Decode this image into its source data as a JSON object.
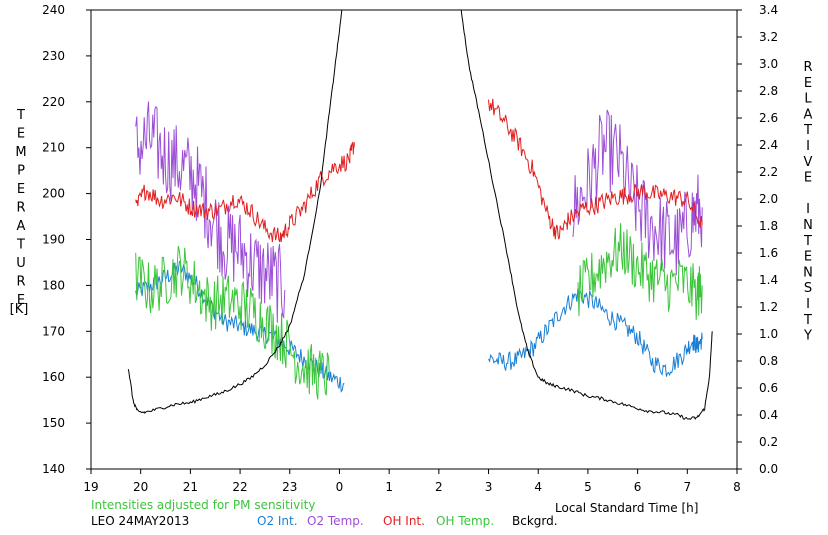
{
  "chart_data": {
    "type": "line",
    "title": "",
    "xlabel": "Local Standard Time [h]",
    "ylabel_left": "TEMPERATURE [K]",
    "ylabel_left_letters": [
      "T",
      "E",
      "M",
      "P",
      "E",
      "R",
      "A",
      "T",
      "U",
      "R",
      "E"
    ],
    "ylabel_left_unit": "[K]",
    "ylabel_right_letters": [
      "R",
      "E",
      "L",
      "A",
      "T",
      "I",
      "V",
      "E",
      "",
      "I",
      "N",
      "T",
      "E",
      "N",
      "S",
      "I",
      "T",
      "Y"
    ],
    "ylim_left": [
      140,
      240
    ],
    "ylim_right": [
      0.0,
      3.4
    ],
    "xlim": [
      19,
      32
    ],
    "x_ticks": [
      19,
      20,
      21,
      22,
      23,
      24,
      25,
      26,
      27,
      28,
      29,
      30,
      31,
      32
    ],
    "x_tick_labels": [
      "19",
      "20",
      "21",
      "22",
      "23",
      "0",
      "1",
      "2",
      "3",
      "4",
      "5",
      "6",
      "7",
      "8"
    ],
    "y_left_ticks": [
      "140",
      "150",
      "160",
      "170",
      "180",
      "190",
      "200",
      "210",
      "220",
      "230",
      "240"
    ],
    "y_right_ticks": [
      "0.0",
      "0.2",
      "0.4",
      "0.6",
      "0.8",
      "1.0",
      "1.2",
      "1.4",
      "1.6",
      "1.8",
      "2.0",
      "2.2",
      "2.4",
      "2.6",
      "2.8",
      "3.0",
      "3.2",
      "3.4"
    ],
    "note": "Intensities adjusted for PM sensitivity",
    "site_date": "LEO 24MAY2013",
    "grid": false,
    "legend_position": "bottom",
    "series": [
      {
        "name": "O2 Int.",
        "axis": "right",
        "color": "#1a7fd4",
        "segments": [
          {
            "x": [
              19.9,
              20.2,
              20.5,
              20.8,
              21.1,
              21.4,
              21.7,
              22.0,
              22.3,
              22.6,
              22.9,
              23.2,
              23.5,
              23.8,
              24.1
            ],
            "y": [
              1.3,
              1.36,
              1.42,
              1.49,
              1.38,
              1.21,
              1.09,
              1.06,
              1.02,
              0.99,
              0.92,
              0.84,
              0.76,
              0.68,
              0.63
            ]
          },
          {
            "x": [
              27.0,
              27.3,
              27.6,
              27.9,
              28.2,
              28.5,
              28.8,
              29.1,
              29.4,
              29.7,
              30.0,
              30.3,
              30.6,
              30.9,
              31.1,
              31.2,
              31.3
            ],
            "y": [
              0.82,
              0.79,
              0.81,
              0.9,
              1.04,
              1.19,
              1.3,
              1.24,
              1.14,
              1.06,
              0.98,
              0.79,
              0.74,
              0.84,
              0.95,
              0.91,
              0.96
            ]
          }
        ]
      },
      {
        "name": "O2 Temp.",
        "axis": "left",
        "color": "#9c4fd6",
        "segments": [
          {
            "x": [
              19.9,
              20.2,
              20.5,
              20.8,
              21.1,
              21.4,
              21.7,
              22.0,
              22.3,
              22.6,
              22.9
            ],
            "y": [
              210,
              212,
              208,
              206,
              203,
              196,
              189,
              188,
              184,
              182,
              179
            ]
          },
          {
            "x": [
              28.7,
              29.0,
              29.3,
              29.6,
              29.9,
              30.2,
              30.5,
              30.8,
              31.1,
              31.3
            ],
            "y": [
              196,
              202,
              210,
              208,
              199,
              194,
              191,
              189,
              195,
              197
            ]
          }
        ]
      },
      {
        "name": "OH Int.",
        "axis": "right",
        "color": "#e02020",
        "segments": [
          {
            "x": [
              19.9,
              20.1,
              20.4,
              20.7,
              21.0,
              21.3,
              21.6,
              21.9,
              22.2,
              22.5,
              22.8,
              23.0,
              23.3,
              23.6,
              23.9,
              24.2,
              24.3
            ],
            "y": [
              1.93,
              2.07,
              1.99,
              2.02,
              1.94,
              1.91,
              1.92,
              2.01,
              1.92,
              1.78,
              1.71,
              1.81,
              1.95,
              2.14,
              2.24,
              2.29,
              2.42
            ]
          },
          {
            "x": [
              27.0,
              27.3,
              27.6,
              27.9,
              28.2,
              28.4,
              28.6,
              28.9,
              29.2,
              29.5,
              29.8,
              30.1,
              30.4,
              30.7,
              31.0,
              31.3
            ],
            "y": [
              2.72,
              2.58,
              2.42,
              2.21,
              1.87,
              1.73,
              1.84,
              1.93,
              1.96,
              2.01,
              2.03,
              2.06,
              2.03,
              2.02,
              1.99,
              1.81
            ]
          }
        ]
      },
      {
        "name": "OH Temp.",
        "axis": "left",
        "color": "#3cc43c",
        "segments": [
          {
            "x": [
              19.9,
              20.2,
              20.5,
              20.8,
              21.1,
              21.4,
              21.7,
              22.0,
              22.3,
              22.6,
              22.9,
              23.2,
              23.5,
              23.8
            ],
            "y": [
              182,
              179,
              181,
              184,
              180,
              176,
              177,
              176,
              174,
              171,
              168,
              163,
              161,
              160
            ]
          },
          {
            "x": [
              28.8,
              29.1,
              29.4,
              29.7,
              30.0,
              30.3,
              30.6,
              30.9,
              31.2,
              31.3
            ],
            "y": [
              178,
              182,
              186,
              188,
              184,
              182,
              180,
              181,
              178,
              180
            ]
          }
        ]
      },
      {
        "name": "Bckgrd.",
        "axis": "right",
        "color": "#000000",
        "segments": [
          {
            "x": [
              19.75,
              19.85,
              19.95,
              20.1,
              20.4,
              20.7,
              21.0,
              21.3,
              21.6,
              21.9,
              22.2,
              22.5,
              22.8,
              23.0,
              23.3,
              23.6,
              23.8,
              23.95,
              24.05,
              24.1
            ],
            "y": [
              0.75,
              0.5,
              0.42,
              0.42,
              0.45,
              0.48,
              0.49,
              0.53,
              0.56,
              0.61,
              0.67,
              0.77,
              0.92,
              1.06,
              1.45,
              2.05,
              2.65,
              3.1,
              3.4,
              3.55
            ]
          },
          {
            "x": [
              26.35,
              26.45,
              26.6,
              26.8,
              27.1,
              27.4,
              27.6,
              27.8,
              28.0,
              28.2,
              28.4,
              28.7,
              29.0,
              29.3,
              29.6,
              29.9,
              30.2,
              30.5,
              30.8,
              31.0,
              31.2,
              31.35,
              31.45,
              31.5
            ],
            "y": [
              3.55,
              3.4,
              3.0,
              2.65,
              2.1,
              1.55,
              1.15,
              0.86,
              0.68,
              0.63,
              0.61,
              0.58,
              0.54,
              0.52,
              0.49,
              0.46,
              0.43,
              0.42,
              0.4,
              0.37,
              0.38,
              0.45,
              0.7,
              1.02
            ]
          }
        ]
      }
    ]
  }
}
